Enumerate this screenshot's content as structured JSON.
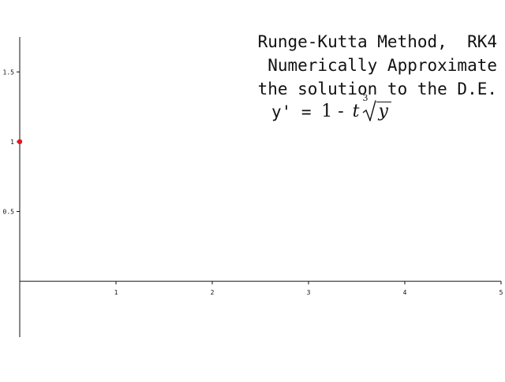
{
  "title_lines": [
    "Runge-Kutta Method,  RK4",
    "Numerically Approximate",
    "the solution to the D.E."
  ],
  "equation": {
    "lhs": "y' = ",
    "rhs_start": "1 - ",
    "t": "t",
    "root_index": "3",
    "radicand": "y"
  },
  "colors": {
    "axis": "#111111",
    "point": "#e8141e",
    "text": "#111111"
  },
  "chart_data": {
    "type": "scatter",
    "title": "",
    "xlabel": "",
    "ylabel": "",
    "xlim": [
      0,
      5
    ],
    "ylim": [
      -0.4,
      1.75
    ],
    "x_ticks": [
      1,
      2,
      3,
      4,
      5
    ],
    "x_tick_labels": [
      "1",
      "2",
      "3",
      "4",
      "5"
    ],
    "y_ticks": [
      0.5,
      1,
      1.5
    ],
    "y_tick_labels": [
      "0.5",
      "1",
      "1.5"
    ],
    "grid": false,
    "series": [
      {
        "x": [
          0
        ],
        "y": [
          1
        ]
      }
    ]
  }
}
